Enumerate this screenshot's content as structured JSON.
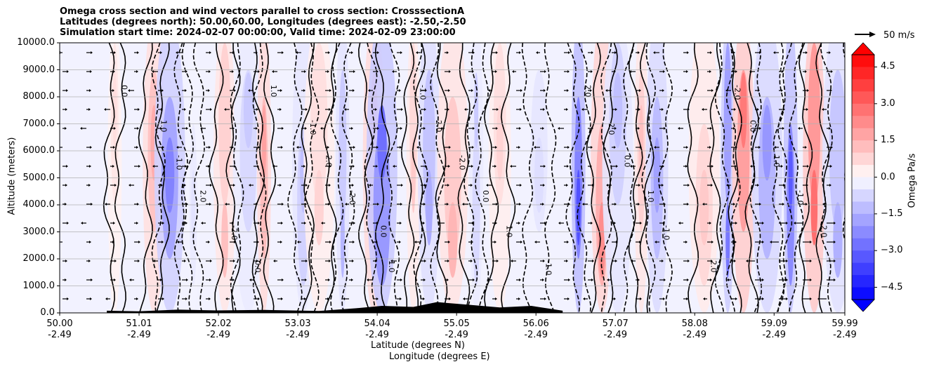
{
  "chart_data": {
    "type": "heatmap",
    "title_lines": [
      "Omega cross section and wind vectors parallel to cross section: CrosssectionA",
      "Latitudes (degrees north): 50.00,60.00, Longitudes (degrees east): -2.50,-2.50",
      "Simulation start time: 2024-02-07 00:00:00, Valid time: 2024-02-09 23:00:00"
    ],
    "ylabel": "Altitude (meters)",
    "xlabel": "Latitude (degrees N)",
    "xlabel2": "Longitude (degrees E)",
    "ylim": [
      0,
      10000
    ],
    "xlim": [
      50.0,
      59.99
    ],
    "y_ticks": [
      "0.0",
      "1000.0",
      "2000.0",
      "3000.0",
      "4000.0",
      "5000.0",
      "6000.0",
      "7000.0",
      "8000.0",
      "9000.0",
      "10000.0"
    ],
    "x_ticks": [
      {
        "lat": "50.00",
        "lon": "-2.49"
      },
      {
        "lat": "51.01",
        "lon": "-2.49"
      },
      {
        "lat": "52.02",
        "lon": "-2.49"
      },
      {
        "lat": "53.03",
        "lon": "-2.49"
      },
      {
        "lat": "54.04",
        "lon": "-2.49"
      },
      {
        "lat": "55.05",
        "lon": "-2.49"
      },
      {
        "lat": "56.06",
        "lon": "-2.49"
      },
      {
        "lat": "57.07",
        "lon": "-2.49"
      },
      {
        "lat": "58.08",
        "lon": "-2.49"
      },
      {
        "lat": "59.09",
        "lon": "-2.49"
      },
      {
        "lat": "59.99",
        "lon": "-2.49"
      }
    ],
    "grid": "horizontal",
    "colorbar": {
      "label": "Omega Pa/s",
      "range": [
        -5.0,
        5.0
      ],
      "extend": "both",
      "colormap": "bwr",
      "ticks": [
        "4.5",
        "3.0",
        "1.5",
        "0.0",
        "−1.5",
        "−3.0",
        "−4.5"
      ],
      "min_color": "#0000ff",
      "max_color": "#ff0000"
    },
    "contour_label_values": [
      "0.0",
      "1.0",
      "-1.0",
      "2.0",
      "-2.0"
    ],
    "quiver_key": {
      "label": "50 m/s",
      "value": 50
    },
    "omega_columns": [
      {
        "lat": 50.7,
        "value": 0.6
      },
      {
        "lat": 51.2,
        "value": 1.6
      },
      {
        "lat": 51.4,
        "value": -2.4
      },
      {
        "lat": 51.7,
        "value": -0.5
      },
      {
        "lat": 52.1,
        "value": 1.2
      },
      {
        "lat": 52.4,
        "value": -1.0
      },
      {
        "lat": 52.6,
        "value": 1.8
      },
      {
        "lat": 53.1,
        "value": -1.2
      },
      {
        "lat": 53.3,
        "value": 0.8
      },
      {
        "lat": 53.6,
        "value": -1.4
      },
      {
        "lat": 54.0,
        "value": 1.8
      },
      {
        "lat": 54.1,
        "value": -2.8
      },
      {
        "lat": 54.5,
        "value": 1.0
      },
      {
        "lat": 54.7,
        "value": -1.6
      },
      {
        "lat": 55.0,
        "value": 1.4
      },
      {
        "lat": 55.3,
        "value": -1.0
      },
      {
        "lat": 55.6,
        "value": 0.8
      },
      {
        "lat": 56.1,
        "value": -0.6
      },
      {
        "lat": 56.6,
        "value": -3.4
      },
      {
        "lat": 56.9,
        "value": 2.2
      },
      {
        "lat": 57.1,
        "value": -1.2
      },
      {
        "lat": 57.4,
        "value": 1.2
      },
      {
        "lat": 57.6,
        "value": -1.8
      },
      {
        "lat": 58.2,
        "value": 1.0
      },
      {
        "lat": 58.5,
        "value": -2.6
      },
      {
        "lat": 58.7,
        "value": 2.6
      },
      {
        "lat": 59.0,
        "value": -2.0
      },
      {
        "lat": 59.3,
        "value": -3.2
      },
      {
        "lat": 59.6,
        "value": 2.8
      },
      {
        "lat": 59.9,
        "value": -1.5
      }
    ],
    "terrain": [
      {
        "lat": 50.6,
        "height": 80
      },
      {
        "lat": 51.0,
        "height": 60
      },
      {
        "lat": 51.5,
        "height": 120
      },
      {
        "lat": 52.0,
        "height": 90
      },
      {
        "lat": 52.6,
        "height": 110
      },
      {
        "lat": 53.3,
        "height": 70
      },
      {
        "lat": 53.8,
        "height": 180
      },
      {
        "lat": 54.1,
        "height": 260
      },
      {
        "lat": 54.5,
        "height": 220
      },
      {
        "lat": 54.8,
        "height": 400
      },
      {
        "lat": 55.2,
        "height": 300
      },
      {
        "lat": 55.6,
        "height": 200
      },
      {
        "lat": 56.0,
        "height": 260
      },
      {
        "lat": 56.4,
        "height": 80
      }
    ]
  }
}
